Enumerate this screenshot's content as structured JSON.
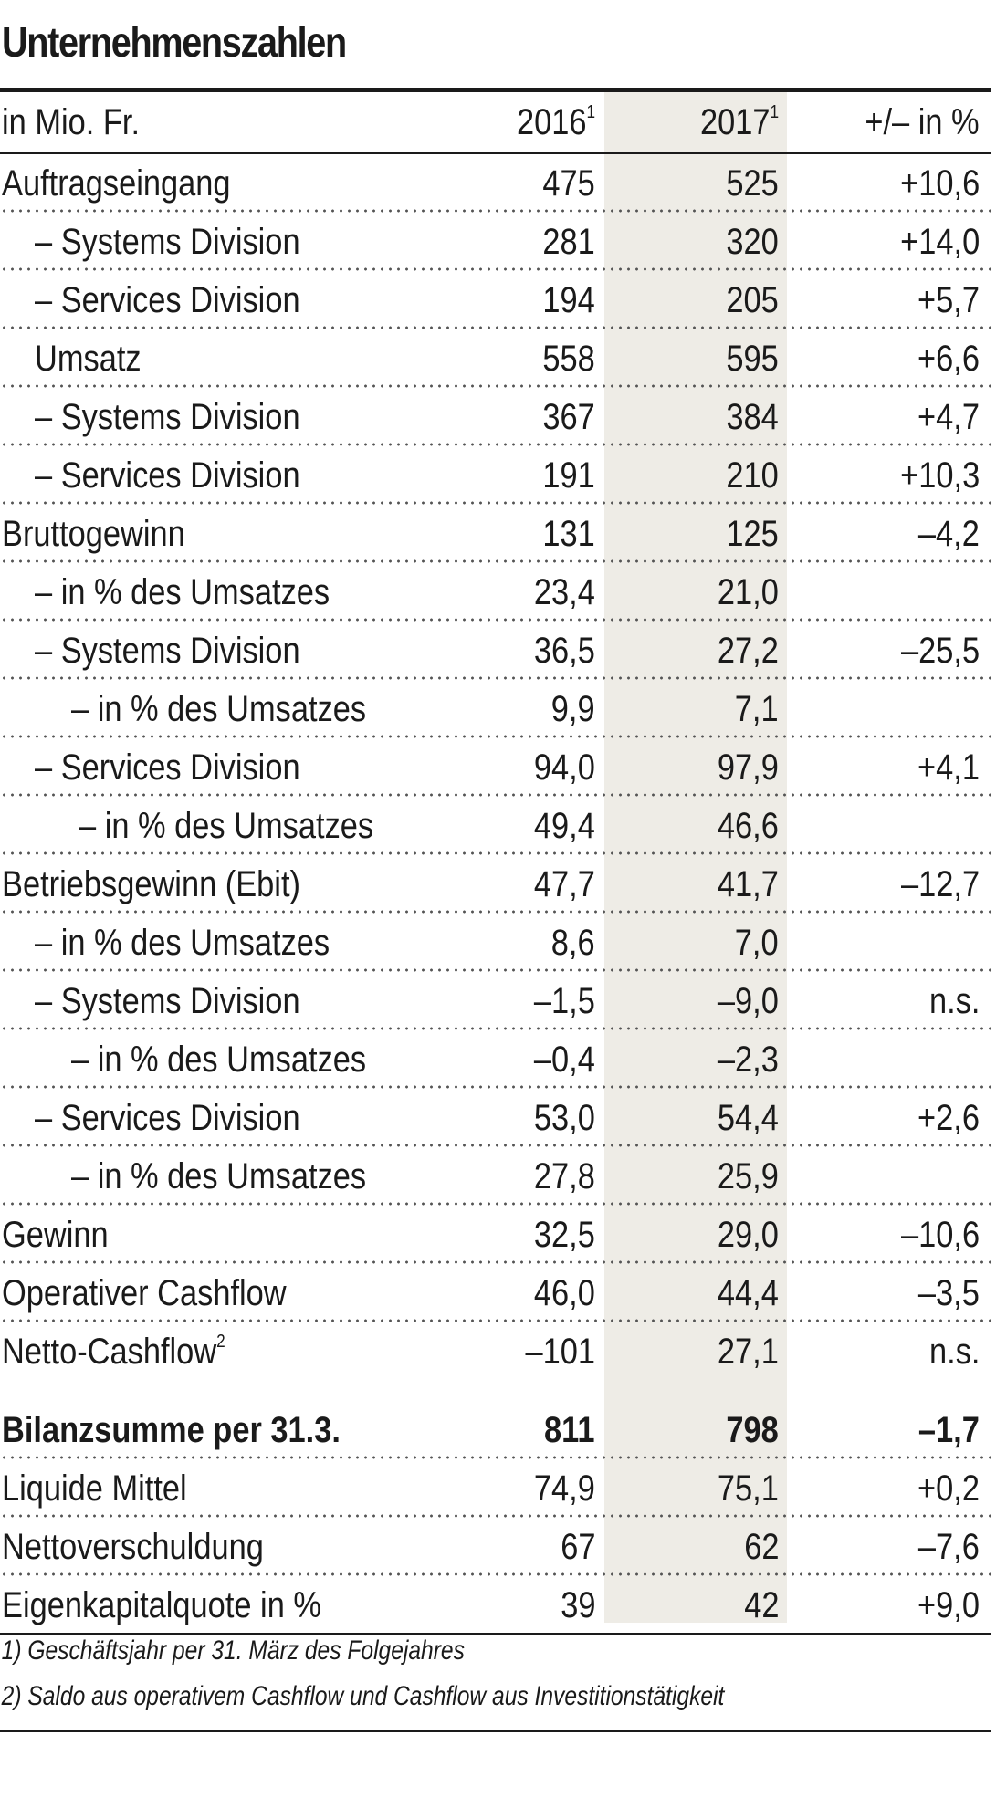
{
  "title": "Unternehmenszahlen",
  "header": {
    "unit": "in Mio. Fr.",
    "col2016": "2016",
    "col2016_note": "1",
    "col2017": "2017",
    "col2017_note": "1",
    "colpct": "+/– in %"
  },
  "rows": [
    {
      "label": "Auftragseingang",
      "v2016": "475",
      "v2017": "525",
      "pct": "+10,6"
    },
    {
      "label": "– Systems Division",
      "v2016": "281",
      "v2017": "320",
      "pct": "+14,0"
    },
    {
      "label": "– Services Division",
      "v2016": "194",
      "v2017": "205",
      "pct": "+5,7"
    },
    {
      "label": "Umsatz",
      "v2016": "558",
      "v2017": "595",
      "pct": "+6,6"
    },
    {
      "label": "– Systems Division",
      "v2016": "367",
      "v2017": "384",
      "pct": "+4,7"
    },
    {
      "label": "– Services Division",
      "v2016": "191",
      "v2017": "210",
      "pct": "+10,3"
    },
    {
      "label": "Bruttogewinn",
      "v2016": "131",
      "v2017": "125",
      "pct": "–4,2"
    },
    {
      "label": "– in % des Umsatzes",
      "v2016": "23,4",
      "v2017": "21,0",
      "pct": ""
    },
    {
      "label": "– Systems Division",
      "v2016": "36,5",
      "v2017": "27,2",
      "pct": "–25,5"
    },
    {
      "label": "– in % des Umsatzes",
      "v2016": "9,9",
      "v2017": "7,1",
      "pct": ""
    },
    {
      "label": "– Services Division",
      "v2016": "94,0",
      "v2017": "97,9",
      "pct": "+4,1"
    },
    {
      "label": "– in % des Umsatzes",
      "v2016": "49,4",
      "v2017": "46,6",
      "pct": ""
    },
    {
      "label": "Betriebsgewinn (Ebit)",
      "v2016": "47,7",
      "v2017": "41,7",
      "pct": "–12,7"
    },
    {
      "label": "– in % des Umsatzes",
      "v2016": "8,6",
      "v2017": "7,0",
      "pct": ""
    },
    {
      "label": "– Systems Division",
      "v2016": "–1,5",
      "v2017": "–9,0",
      "pct": "n.s."
    },
    {
      "label": "– in % des Umsatzes",
      "v2016": "–0,4",
      "v2017": "–2,3",
      "pct": ""
    },
    {
      "label": "– Services Division",
      "v2016": "53,0",
      "v2017": "54,4",
      "pct": "+2,6"
    },
    {
      "label": "– in % des Umsatzes",
      "v2016": "27,8",
      "v2017": "25,9",
      "pct": ""
    },
    {
      "label": "Gewinn",
      "v2016": "32,5",
      "v2017": "29,0",
      "pct": "–10,6"
    },
    {
      "label": "Operativer Cashflow",
      "v2016": "46,0",
      "v2017": "44,4",
      "pct": "–3,5"
    },
    {
      "label": "Netto-Cashflow",
      "label_note": "2",
      "v2016": "–101",
      "v2017": "27,1",
      "pct": "n.s."
    },
    {
      "label": "Bilanzsumme per 31.3.",
      "v2016": "811",
      "v2017": "798",
      "pct": "–1,7"
    },
    {
      "label": "Liquide Mittel",
      "v2016": "74,9",
      "v2017": "75,1",
      "pct": "+0,2"
    },
    {
      "label": "Nettoverschuldung",
      "v2016": "67",
      "v2017": "62",
      "pct": "–7,6"
    },
    {
      "label": "Eigenkapitalquote in %",
      "v2016": "39",
      "v2017": "42",
      "pct": "+9,0"
    }
  ],
  "footnotes": [
    "1) Geschäftsjahr per 31. März des Folgejahres",
    "2) Saldo aus operativem Cashflow und Cashflow aus Investitionstätigkeit"
  ]
}
